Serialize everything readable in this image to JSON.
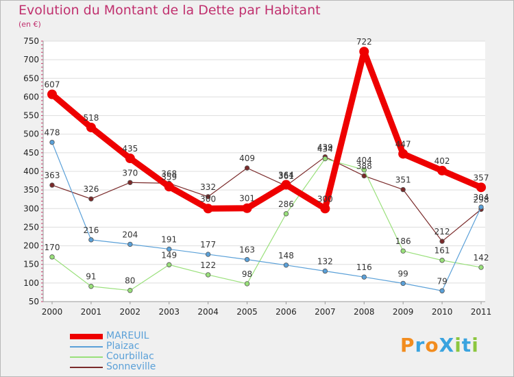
{
  "title": "Evolution du Montant de la Dette par Habitant",
  "unit": "(en €)",
  "logo": "ProXiti",
  "chart_data": {
    "type": "line",
    "title": "Evolution du Montant de la Dette par Habitant",
    "subtitle": "(en €)",
    "categories": [
      "2000",
      "2001",
      "2002",
      "2003",
      "2004",
      "2005",
      "2006",
      "2007",
      "2008",
      "2009",
      "2010",
      "2011"
    ],
    "ylim": [
      50,
      750
    ],
    "yticks": [
      50,
      100,
      150,
      200,
      250,
      300,
      350,
      400,
      450,
      500,
      550,
      600,
      650,
      700,
      750
    ],
    "grid": "horizontal",
    "legend_position": "bottom-left",
    "series": [
      {
        "name": "Sonneville",
        "color": "#7a2a2a",
        "values": [
          363,
          326,
          370,
          368,
          332,
          409,
          361,
          439,
          388,
          351,
          212,
          298
        ]
      },
      {
        "name": "Courbillac",
        "color": "#99e07a",
        "values": [
          170,
          91,
          80,
          149,
          122,
          98,
          286,
          434,
          404,
          186,
          161,
          142
        ]
      },
      {
        "name": "Plaizac",
        "color": "#5aa0d8",
        "values": [
          478,
          216,
          204,
          191,
          177,
          163,
          148,
          132,
          116,
          99,
          79,
          304
        ]
      },
      {
        "name": "MAREUIL",
        "color": "#ee0000",
        "values": [
          607,
          518,
          435,
          359,
          300,
          301,
          364,
          300,
          722,
          447,
          402,
          357
        ]
      }
    ]
  },
  "legend": [
    {
      "name": "MAREUIL",
      "color": "#ee0000"
    },
    {
      "name": "Plaizac",
      "color": "#5aa0d8"
    },
    {
      "name": "Courbillac",
      "color": "#99e07a"
    },
    {
      "name": "Sonneville",
      "color": "#7a2a2a"
    }
  ]
}
